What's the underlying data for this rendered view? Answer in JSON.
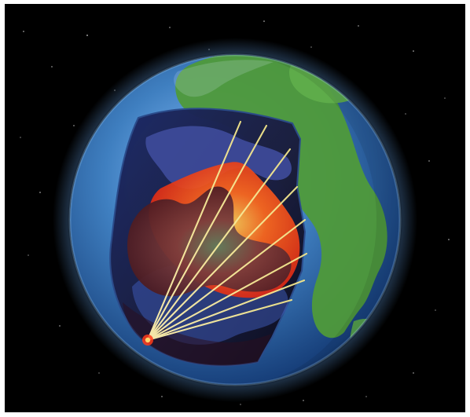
{
  "image": {
    "subject": "earth-cutaway",
    "colors": {
      "space": "#000000",
      "ocean": "#3f7fc0",
      "land": "#4f9a3a",
      "mantle_blue": "#3e4b9a",
      "hot_orange": "#ff5a1a",
      "core_red": "#8a2a2a",
      "ray": "#f2e58a"
    }
  }
}
